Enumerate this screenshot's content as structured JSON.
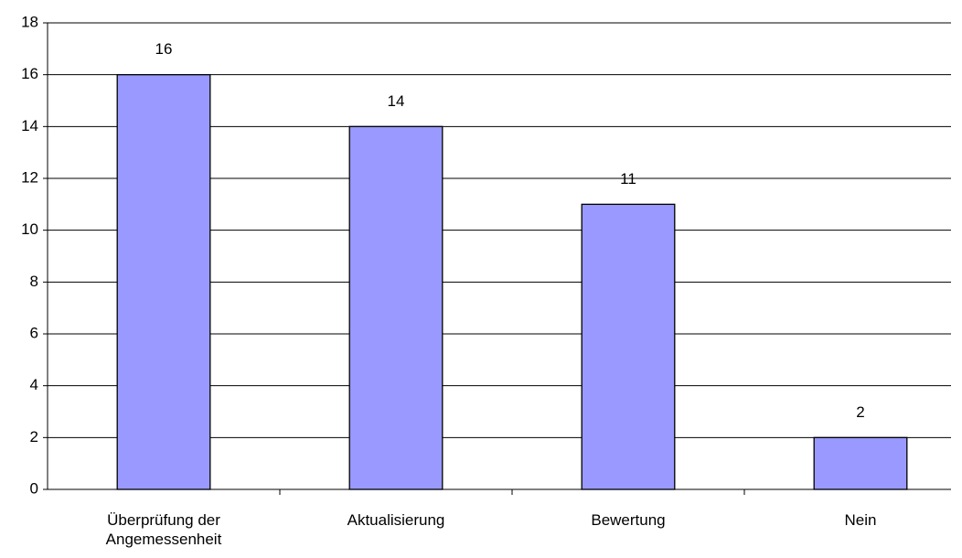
{
  "chart_data": {
    "type": "bar",
    "categories": [
      "Überprüfung der Angemessenheit",
      "Aktualisierung",
      "Bewertung",
      "Nein"
    ],
    "values": [
      16,
      14,
      11,
      2
    ],
    "color": "#9999ff",
    "ylim": [
      0,
      18
    ],
    "yticks": [
      0,
      2,
      4,
      6,
      8,
      10,
      12,
      14,
      16,
      18
    ],
    "grid": true
  }
}
